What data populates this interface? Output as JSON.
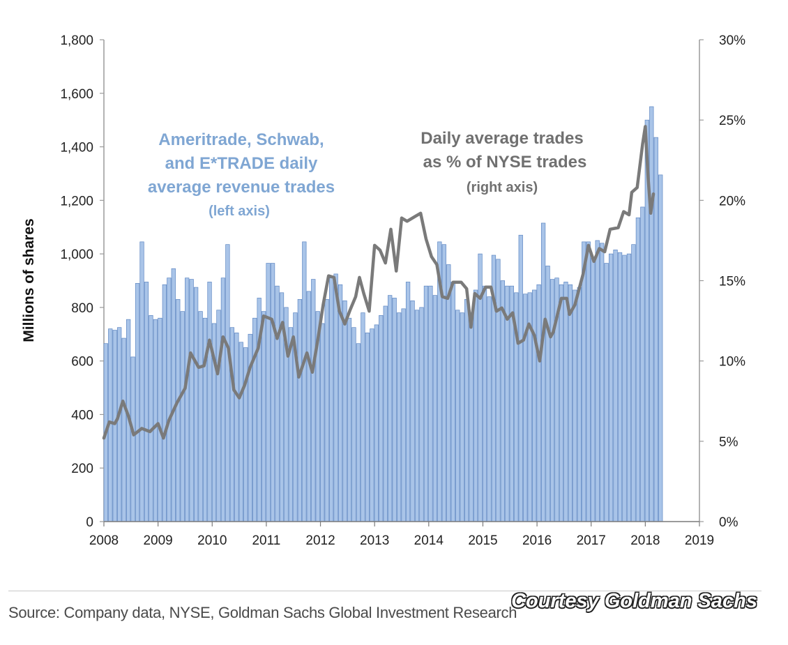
{
  "chart_data": {
    "type": "bar",
    "x_axis": {
      "min": 2008,
      "max": 2019,
      "tick_labels": [
        "2008",
        "2009",
        "2010",
        "2011",
        "2012",
        "2013",
        "2014",
        "2015",
        "2016",
        "2017",
        "2018",
        "2019"
      ]
    },
    "left_axis": {
      "label": "Millions of shares",
      "ylim": [
        0,
        1800
      ],
      "tick_labels": [
        "0",
        "200",
        "400",
        "600",
        "800",
        "1,000",
        "1,200",
        "1,400",
        "1,600",
        "1,800"
      ]
    },
    "right_axis": {
      "ylim": [
        0,
        30
      ],
      "tick_labels": [
        "0%",
        "5%",
        "10%",
        "15%",
        "20%",
        "25%",
        "30%"
      ]
    },
    "annotations": {
      "bars_title": [
        "Ameritrade, Schwab,",
        "and E*TRADE daily",
        "average revenue trades"
      ],
      "bars_note": "(left axis)",
      "line_title": [
        "Daily average trades",
        "as % of NYSE trades"
      ],
      "line_note": "(right axis)"
    },
    "series": [
      {
        "name": "Ameritrade, Schwab, and E*TRADE daily average revenue trades",
        "axis": "left",
        "type": "bar",
        "color": "#a9c4e8",
        "edge": "#5d86c2",
        "start": 2008.0,
        "step": 0.0833,
        "values": [
          665,
          720,
          715,
          725,
          685,
          755,
          615,
          890,
          1045,
          895,
          770,
          755,
          760,
          885,
          910,
          945,
          830,
          785,
          910,
          905,
          875,
          785,
          760,
          895,
          740,
          790,
          910,
          1035,
          725,
          705,
          670,
          650,
          700,
          760,
          835,
          785,
          965,
          965,
          880,
          855,
          800,
          725,
          780,
          830,
          1045,
          860,
          905,
          785,
          740,
          830,
          910,
          925,
          885,
          825,
          760,
          725,
          665,
          780,
          705,
          720,
          735,
          770,
          805,
          845,
          835,
          780,
          795,
          895,
          825,
          790,
          800,
          880,
          880,
          845,
          1045,
          1035,
          960,
          895,
          790,
          780,
          830,
          780,
          865,
          1000,
          880,
          840,
          995,
          980,
          900,
          880,
          880,
          855,
          1070,
          850,
          855,
          865,
          885,
          1115,
          955,
          905,
          910,
          885,
          895,
          885,
          865,
          875,
          1045,
          1045,
          985,
          1050,
          1040,
          965,
          1000,
          1015,
          1005,
          995,
          1000,
          1035,
          1135,
          1175,
          1500,
          1550,
          1435,
          1295
        ]
      },
      {
        "name": "Daily average trades as % of NYSE trades",
        "axis": "right",
        "type": "line",
        "color": "#7a7a7a",
        "points": [
          [
            2008.0,
            5.2
          ],
          [
            2008.1,
            6.2
          ],
          [
            2008.2,
            6.1
          ],
          [
            2008.25,
            6.4
          ],
          [
            2008.35,
            7.5
          ],
          [
            2008.45,
            6.6
          ],
          [
            2008.55,
            5.4
          ],
          [
            2008.7,
            5.8
          ],
          [
            2008.85,
            5.6
          ],
          [
            2009.0,
            6.1
          ],
          [
            2009.1,
            5.2
          ],
          [
            2009.2,
            6.3
          ],
          [
            2009.35,
            7.4
          ],
          [
            2009.5,
            8.3
          ],
          [
            2009.6,
            10.5
          ],
          [
            2009.75,
            9.6
          ],
          [
            2009.85,
            9.7
          ],
          [
            2009.95,
            11.3
          ],
          [
            2010.1,
            9.2
          ],
          [
            2010.2,
            11.5
          ],
          [
            2010.3,
            10.8
          ],
          [
            2010.4,
            8.2
          ],
          [
            2010.5,
            7.7
          ],
          [
            2010.6,
            8.5
          ],
          [
            2010.7,
            9.6
          ],
          [
            2010.85,
            10.8
          ],
          [
            2010.95,
            12.8
          ],
          [
            2011.1,
            12.6
          ],
          [
            2011.2,
            11.4
          ],
          [
            2011.3,
            12.4
          ],
          [
            2011.4,
            10.3
          ],
          [
            2011.5,
            11.5
          ],
          [
            2011.6,
            9.0
          ],
          [
            2011.75,
            10.5
          ],
          [
            2011.85,
            9.3
          ],
          [
            2011.95,
            11.3
          ],
          [
            2012.05,
            13.5
          ],
          [
            2012.15,
            15.3
          ],
          [
            2012.25,
            15.2
          ],
          [
            2012.35,
            13.1
          ],
          [
            2012.45,
            12.3
          ],
          [
            2012.55,
            13.2
          ],
          [
            2012.65,
            14.0
          ],
          [
            2012.72,
            15.2
          ],
          [
            2012.8,
            14.2
          ],
          [
            2012.9,
            13.1
          ],
          [
            2013.0,
            17.2
          ],
          [
            2013.1,
            16.9
          ],
          [
            2013.2,
            16.1
          ],
          [
            2013.3,
            18.2
          ],
          [
            2013.4,
            15.6
          ],
          [
            2013.5,
            18.9
          ],
          [
            2013.6,
            18.7
          ],
          [
            2013.75,
            19.0
          ],
          [
            2013.85,
            19.2
          ],
          [
            2013.95,
            17.6
          ],
          [
            2014.05,
            16.5
          ],
          [
            2014.15,
            16.0
          ],
          [
            2014.25,
            14.0
          ],
          [
            2014.35,
            13.9
          ],
          [
            2014.45,
            14.9
          ],
          [
            2014.6,
            14.9
          ],
          [
            2014.7,
            14.5
          ],
          [
            2014.78,
            12.1
          ],
          [
            2014.85,
            14.2
          ],
          [
            2014.95,
            13.9
          ],
          [
            2015.05,
            14.6
          ],
          [
            2015.15,
            14.6
          ],
          [
            2015.25,
            13.1
          ],
          [
            2015.35,
            13.3
          ],
          [
            2015.45,
            12.6
          ],
          [
            2015.55,
            13.0
          ],
          [
            2015.65,
            11.1
          ],
          [
            2015.75,
            11.3
          ],
          [
            2015.85,
            12.3
          ],
          [
            2015.95,
            11.6
          ],
          [
            2016.05,
            10.0
          ],
          [
            2016.15,
            12.6
          ],
          [
            2016.25,
            11.5
          ],
          [
            2016.3,
            11.8
          ],
          [
            2016.45,
            13.9
          ],
          [
            2016.55,
            13.9
          ],
          [
            2016.6,
            12.9
          ],
          [
            2016.7,
            13.5
          ],
          [
            2016.85,
            15.4
          ],
          [
            2016.95,
            17.2
          ],
          [
            2017.05,
            16.2
          ],
          [
            2017.15,
            17.0
          ],
          [
            2017.25,
            16.8
          ],
          [
            2017.35,
            18.2
          ],
          [
            2017.5,
            18.3
          ],
          [
            2017.6,
            19.3
          ],
          [
            2017.7,
            19.1
          ],
          [
            2017.75,
            20.5
          ],
          [
            2017.85,
            20.8
          ],
          [
            2017.95,
            23.5
          ],
          [
            2018.0,
            24.6
          ],
          [
            2018.05,
            21.5
          ],
          [
            2018.1,
            19.2
          ],
          [
            2018.15,
            20.4
          ]
        ]
      }
    ]
  },
  "footer": {
    "source": "Source: Company data, NYSE, Goldman Sachs Global Investment Research",
    "courtesy": "Courtesy Goldman Sachs"
  }
}
